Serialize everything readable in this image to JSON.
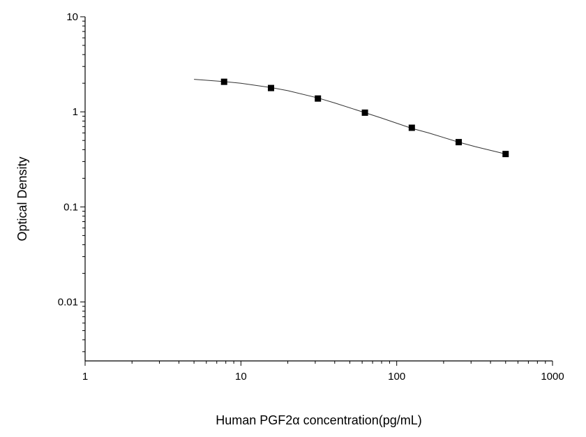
{
  "chart_data": {
    "type": "scatter",
    "x_label": "Human PGF2α  concentration(pg/mL)",
    "y_label": "Optical Density",
    "log_x": true,
    "log_y": true,
    "xlim": [
      1,
      1000
    ],
    "ylim": [
      0.0024,
      10
    ],
    "xticks": [
      1,
      10,
      100,
      1000
    ],
    "yticks": [
      0.01,
      0.1,
      1,
      10
    ],
    "xminor_ticks": [
      2,
      3,
      4,
      5,
      6,
      7,
      8,
      9,
      20,
      30,
      40,
      50,
      60,
      70,
      80,
      90,
      200,
      300,
      400,
      500,
      600,
      700,
      800,
      900
    ],
    "yminor_ticks": [
      0.003,
      0.004,
      0.005,
      0.006,
      0.007,
      0.008,
      0.009,
      0.02,
      0.03,
      0.04,
      0.05,
      0.06,
      0.07,
      0.08,
      0.09,
      0.2,
      0.3,
      0.4,
      0.5,
      0.6,
      0.7,
      0.8,
      0.9,
      2,
      3,
      4,
      5,
      6,
      7,
      8,
      9
    ],
    "x": [
      7.8,
      15.6,
      31.2,
      62.5,
      125,
      250,
      500
    ],
    "values": [
      2.07,
      1.78,
      1.38,
      0.98,
      0.68,
      0.48,
      0.36
    ],
    "color": "#000000",
    "fit_curve": {
      "color": "#333333",
      "x": [
        5,
        7.8,
        10,
        15.6,
        20,
        31.2,
        40,
        62.5,
        80,
        125,
        160,
        250,
        320,
        500
      ],
      "values": [
        2.2,
        2.08,
        2.0,
        1.8,
        1.67,
        1.4,
        1.24,
        0.98,
        0.86,
        0.67,
        0.6,
        0.48,
        0.43,
        0.36
      ]
    }
  }
}
